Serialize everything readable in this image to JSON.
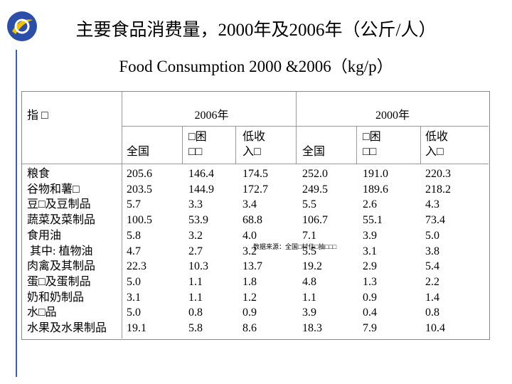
{
  "header": {
    "title": "主要食品消费量，2000年及2006年（公斤/人）",
    "subtitle": "Food Consumption 2000 &2006（kg/p）"
  },
  "table": {
    "top_header": [
      "指 □",
      "2006年",
      "2000年"
    ],
    "sub_header": [
      [
        "全国"
      ],
      [
        "□困",
        "□□"
      ],
      [
        "低收",
        "入□"
      ],
      [
        "全国"
      ],
      [
        "□困",
        "□□"
      ],
      [
        "低收",
        "入□"
      ]
    ],
    "rows": [
      [
        "粮食",
        "205.6",
        "146.4",
        "174.5",
        "252.0",
        "191.0",
        "220.3"
      ],
      [
        "谷物和薯□",
        "203.5",
        "144.9",
        "172.7",
        "249.5",
        "189.6",
        "218.2"
      ],
      [
        "豆□及豆制品",
        "5.7",
        "3.3",
        "3.4",
        "5.5",
        "2.6",
        "4.3"
      ],
      [
        "蔬菜及菜制品",
        "100.5",
        "53.9",
        "68.8",
        "106.7",
        "55.1",
        "73.4"
      ],
      [
        "食用油",
        "5.8",
        "3.2",
        "4.0",
        "7.1",
        "3.9",
        "5.0"
      ],
      [
        " 其中: 植物油",
        "4.7",
        "2.7",
        "3.2",
        "5.5",
        "3.1",
        "3.8"
      ],
      [
        "肉禽及其制品",
        "22.3",
        "10.3",
        "13.7",
        "19.2",
        "2.9",
        "5.4"
      ],
      [
        "蛋□及蛋制品",
        "5.0",
        "1.1",
        "1.8",
        "4.8",
        "1.3",
        "2.2"
      ],
      [
        "奶和奶制品",
        "3.1",
        "1.1",
        "1.2",
        "1.1",
        "0.9",
        "1.4"
      ],
      [
        "水□品",
        "5.0",
        "0.8",
        "0.9",
        "3.9",
        "0.4",
        "0.8"
      ],
      [
        "水果及水果制品",
        "19.1",
        "5.8",
        "8.6",
        "18.3",
        "7.9",
        "10.4"
      ]
    ],
    "note": "数据来源：全国□村住□抽□□□"
  }
}
